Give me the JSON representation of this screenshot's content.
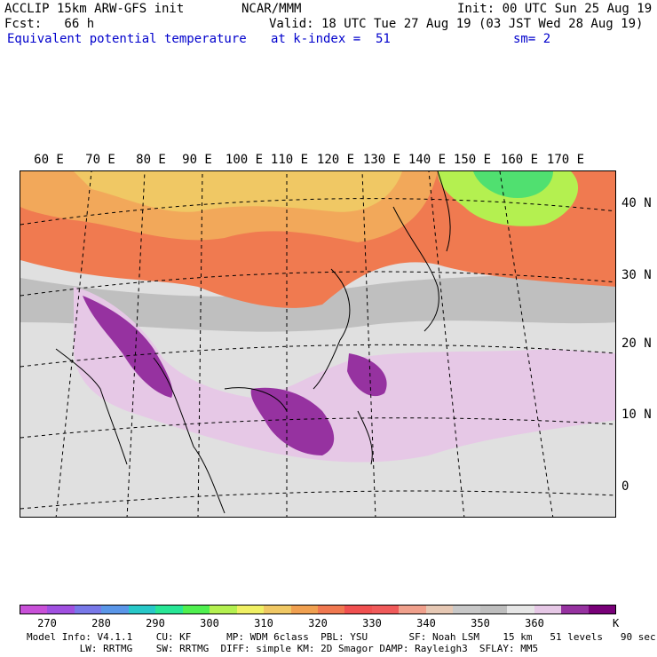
{
  "header": {
    "model": "ACCLIP 15km ARW-GFS init",
    "org": "NCAR/MMM",
    "init": "Init: 00 UTC Sun 25 Aug 19",
    "fcst": "Fcst:   66 h",
    "valid": "Valid: 18 UTC Tue 27 Aug 19 (03 JST Wed 28 Aug 19)",
    "field": "Equivalent potential temperature",
    "level": "at k-index =  51",
    "smoothing": "sm= 2"
  },
  "map": {
    "lon_labels": [
      "60 E",
      "70 E",
      "80 E",
      "90 E",
      "100 E",
      "110 E",
      "120 E",
      "130 E",
      "140 E",
      "150 E",
      "160 E",
      "170 E"
    ],
    "lat_labels": [
      "40 N",
      "30 N",
      "20 N",
      "10 N",
      "0"
    ]
  },
  "colorbar": {
    "colors": [
      "#c850d8",
      "#a050e0",
      "#7878e8",
      "#5a96e8",
      "#28c8c8",
      "#28e696",
      "#50f050",
      "#b4f050",
      "#f0f064",
      "#f0c864",
      "#f0a050",
      "#f07850",
      "#f05050",
      "#f05a5a",
      "#f0a08c",
      "#e6c8b4",
      "#c8c8c8",
      "#bebebe",
      "#e6e6e6",
      "#e6c8e6",
      "#9632a0",
      "#780078"
    ],
    "tick_labels": [
      "270",
      "280",
      "290",
      "300",
      "310",
      "320",
      "330",
      "340",
      "350",
      "360"
    ],
    "unit": "K"
  },
  "model_info": {
    "line1": "Model Info: V4.1.1    CU: KF      MP: WDM 6class  PBL: YSU       SF: Noah LSM    15 km   51 levels   90 sec",
    "line2": "         LW: RRTMG    SW: RRTMG  DIFF: simple KM: 2D Smagor DAMP: Rayleigh3  SFLAY: MM5"
  }
}
